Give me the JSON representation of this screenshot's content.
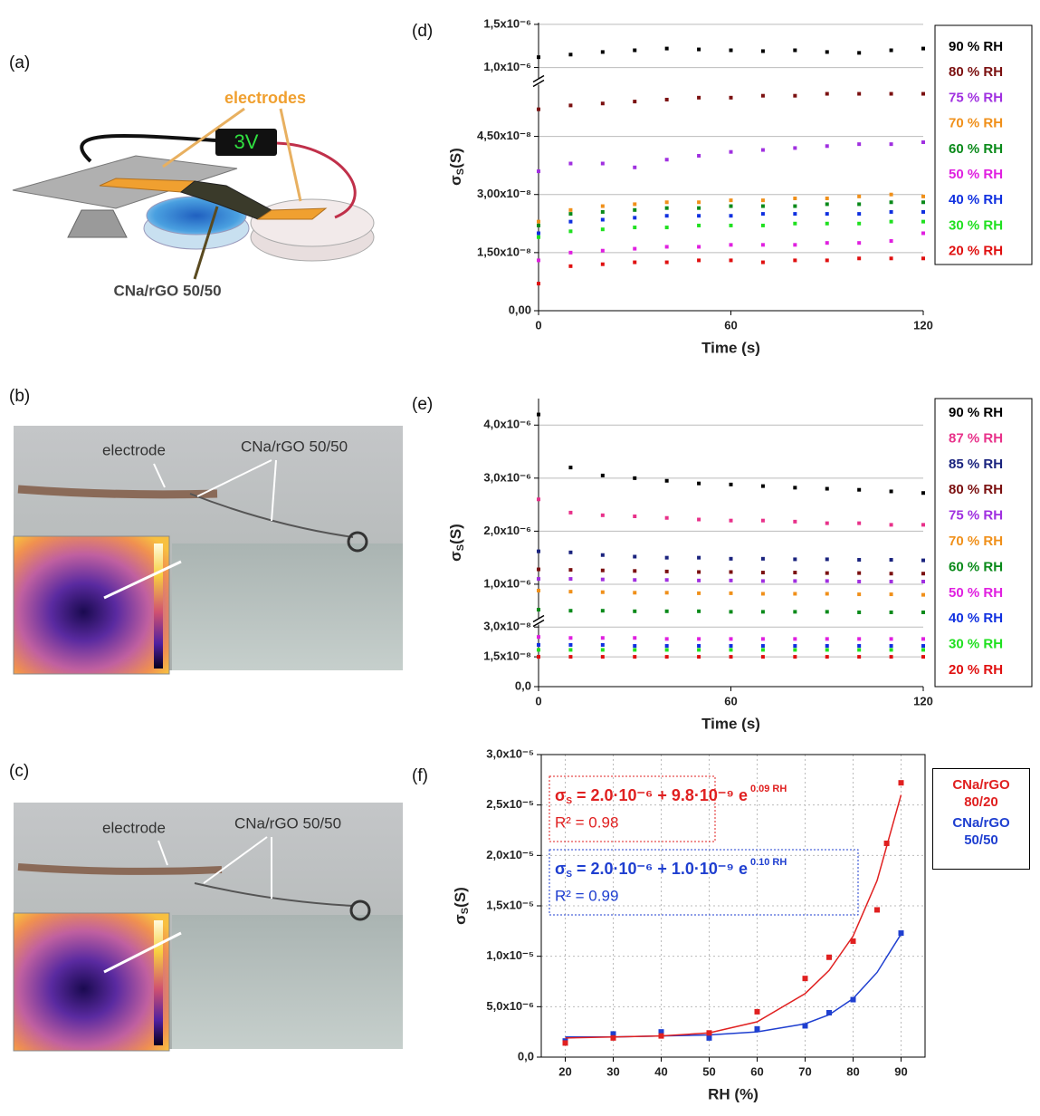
{
  "panels": [
    {
      "label": "(a)",
      "electrodes": "electrodes",
      "voltage": "3V",
      "sample": "CNa/rGO 50/50"
    },
    {
      "label": "(b)",
      "electrode": "electrode",
      "sample": "CNa/rGO 50/50"
    },
    {
      "label": "(c)",
      "electrode": "electrode",
      "sample": "CNa/rGO 50/50"
    }
  ],
  "chart_data": [
    {
      "type": "scatter",
      "panel_label": "(d)",
      "xlabel": "Time (s)",
      "ylabel": [
        "σ",
        "S",
        "(S)"
      ],
      "x": [
        0,
        10,
        20,
        30,
        40,
        50,
        60,
        70,
        80,
        90,
        100,
        110,
        120
      ],
      "xlim": [
        0,
        120
      ],
      "xticks": [
        0,
        60,
        120
      ],
      "grid": true,
      "y_segments": [
        {
          "ylim": [
            0,
            5.8e-08
          ],
          "yticks": [
            {
              "value": 0,
              "label": "0,00"
            },
            {
              "value": 1.5e-08,
              "label": "1,50x10⁻⁸"
            },
            {
              "value": 3e-08,
              "label": "3,00x10⁻⁸"
            },
            {
              "value": 4.5e-08,
              "label": "4,50x10⁻⁸"
            }
          ]
        },
        {
          "ylim": [
            8.8e-07,
            1.52e-06
          ],
          "yticks": [
            {
              "value": 1e-06,
              "label": "1,0x10⁻⁶"
            },
            {
              "value": 1.5e-06,
              "label": "1,5x10⁻⁶"
            }
          ]
        }
      ],
      "series": [
        {
          "name": "90 % RH",
          "color": "#000000",
          "segment": 1,
          "values": [
            1.12e-06,
            1.15e-06,
            1.18e-06,
            1.2e-06,
            1.22e-06,
            1.21e-06,
            1.2e-06,
            1.19e-06,
            1.2e-06,
            1.18e-06,
            1.17e-06,
            1.2e-06,
            1.22e-06
          ]
        },
        {
          "name": "80 % RH",
          "color": "#7b1010",
          "values": [
            5.2e-08,
            5.3e-08,
            5.35e-08,
            5.4e-08,
            5.45e-08,
            5.5e-08,
            5.5e-08,
            5.55e-08,
            5.55e-08,
            5.6e-08,
            5.6e-08,
            5.6e-08,
            5.6e-08
          ]
        },
        {
          "name": "75 % RH",
          "color": "#a030e0",
          "values": [
            3.6e-08,
            3.8e-08,
            3.8e-08,
            3.7e-08,
            3.9e-08,
            4e-08,
            4.1e-08,
            4.15e-08,
            4.2e-08,
            4.25e-08,
            4.3e-08,
            4.3e-08,
            4.35e-08
          ]
        },
        {
          "name": "70 % RH",
          "color": "#f0901a",
          "values": [
            2.3e-08,
            2.6e-08,
            2.7e-08,
            2.75e-08,
            2.8e-08,
            2.8e-08,
            2.85e-08,
            2.85e-08,
            2.9e-08,
            2.9e-08,
            2.95e-08,
            3e-08,
            2.95e-08
          ]
        },
        {
          "name": "60 % RH",
          "color": "#0a8a1a",
          "values": [
            2.2e-08,
            2.5e-08,
            2.55e-08,
            2.6e-08,
            2.65e-08,
            2.65e-08,
            2.7e-08,
            2.7e-08,
            2.7e-08,
            2.75e-08,
            2.75e-08,
            2.8e-08,
            2.8e-08
          ]
        },
        {
          "name": "50 % RH",
          "color": "#e020e0",
          "values": [
            1.3e-08,
            1.5e-08,
            1.55e-08,
            1.6e-08,
            1.65e-08,
            1.65e-08,
            1.7e-08,
            1.7e-08,
            1.7e-08,
            1.75e-08,
            1.75e-08,
            1.8e-08,
            2e-08
          ]
        },
        {
          "name": "40 % RH",
          "color": "#1030e0",
          "values": [
            2e-08,
            2.3e-08,
            2.35e-08,
            2.4e-08,
            2.45e-08,
            2.45e-08,
            2.45e-08,
            2.5e-08,
            2.5e-08,
            2.5e-08,
            2.5e-08,
            2.55e-08,
            2.55e-08
          ]
        },
        {
          "name": "30 % RH",
          "color": "#20e020",
          "values": [
            1.9e-08,
            2.05e-08,
            2.1e-08,
            2.15e-08,
            2.15e-08,
            2.2e-08,
            2.2e-08,
            2.2e-08,
            2.25e-08,
            2.25e-08,
            2.25e-08,
            2.3e-08,
            2.3e-08
          ]
        },
        {
          "name": "20 % RH",
          "color": "#e01010",
          "values": [
            7e-09,
            1.15e-08,
            1.2e-08,
            1.25e-08,
            1.25e-08,
            1.3e-08,
            1.3e-08,
            1.25e-08,
            1.3e-08,
            1.3e-08,
            1.35e-08,
            1.35e-08,
            1.35e-08
          ]
        }
      ]
    },
    {
      "type": "scatter",
      "panel_label": "(e)",
      "xlabel": "Time (s)",
      "ylabel": [
        "σ",
        "S",
        "(S)"
      ],
      "x": [
        0,
        10,
        20,
        30,
        40,
        50,
        60,
        70,
        80,
        90,
        100,
        110,
        120
      ],
      "xlim": [
        0,
        120
      ],
      "xticks": [
        0,
        60,
        120
      ],
      "grid": true,
      "y_segments": [
        {
          "ylim": [
            0,
            3.1e-08
          ],
          "yticks": [
            {
              "value": 0,
              "label": "0,0"
            },
            {
              "value": 1.5e-08,
              "label": "1,5x10⁻⁸"
            },
            {
              "value": 3e-08,
              "label": "3,0x10⁻⁸"
            }
          ]
        },
        {
          "ylim": [
            3.5e-07,
            4.5e-06
          ],
          "yticks": [
            {
              "value": 1e-06,
              "label": "1,0x10⁻⁶"
            },
            {
              "value": 2e-06,
              "label": "2,0x10⁻⁶"
            },
            {
              "value": 3e-06,
              "label": "3,0x10⁻⁶"
            },
            {
              "value": 4e-06,
              "label": "4,0x10⁻⁶"
            }
          ]
        }
      ],
      "series": [
        {
          "name": "90 % RH",
          "color": "#000000",
          "segment": 1,
          "values": [
            4.2e-06,
            3.2e-06,
            3.05e-06,
            3e-06,
            2.95e-06,
            2.9e-06,
            2.88e-06,
            2.85e-06,
            2.82e-06,
            2.8e-06,
            2.78e-06,
            2.75e-06,
            2.72e-06
          ]
        },
        {
          "name": "87 % RH",
          "color": "#e8318a",
          "segment": 1,
          "values": [
            2.6e-06,
            2.35e-06,
            2.3e-06,
            2.28e-06,
            2.25e-06,
            2.22e-06,
            2.2e-06,
            2.2e-06,
            2.18e-06,
            2.15e-06,
            2.15e-06,
            2.12e-06,
            2.12e-06
          ]
        },
        {
          "name": "85 % RH",
          "color": "#1a237e",
          "segment": 1,
          "values": [
            1.62e-06,
            1.6e-06,
            1.55e-06,
            1.52e-06,
            1.5e-06,
            1.5e-06,
            1.48e-06,
            1.48e-06,
            1.47e-06,
            1.47e-06,
            1.46e-06,
            1.46e-06,
            1.45e-06
          ]
        },
        {
          "name": "80 % RH",
          "color": "#7b1010",
          "segment": 1,
          "values": [
            1.28e-06,
            1.27e-06,
            1.26e-06,
            1.25e-06,
            1.24e-06,
            1.23e-06,
            1.23e-06,
            1.22e-06,
            1.22e-06,
            1.21e-06,
            1.21e-06,
            1.2e-06,
            1.2e-06
          ]
        },
        {
          "name": "75 % RH",
          "color": "#a030e0",
          "segment": 1,
          "values": [
            1.1e-06,
            1.1e-06,
            1.09e-06,
            1.08e-06,
            1.08e-06,
            1.07e-06,
            1.07e-06,
            1.06e-06,
            1.06e-06,
            1.06e-06,
            1.05e-06,
            1.05e-06,
            1.05e-06
          ]
        },
        {
          "name": "70 % RH",
          "color": "#f0901a",
          "segment": 1,
          "values": [
            8.8e-07,
            8.6e-07,
            8.5e-07,
            8.4e-07,
            8.4e-07,
            8.3e-07,
            8.3e-07,
            8.2e-07,
            8.2e-07,
            8.2e-07,
            8.1e-07,
            8.1e-07,
            8e-07
          ]
        },
        {
          "name": "60 % RH",
          "color": "#0a8a1a",
          "segment": 1,
          "values": [
            5.2e-07,
            5e-07,
            5e-07,
            4.9e-07,
            4.9e-07,
            4.9e-07,
            4.8e-07,
            4.8e-07,
            4.8e-07,
            4.8e-07,
            4.7e-07,
            4.7e-07,
            4.7e-07
          ]
        },
        {
          "name": "50 % RH",
          "color": "#e020e0",
          "values": [
            2.5e-08,
            2.45e-08,
            2.45e-08,
            2.45e-08,
            2.4e-08,
            2.4e-08,
            2.4e-08,
            2.4e-08,
            2.4e-08,
            2.4e-08,
            2.4e-08,
            2.4e-08,
            2.4e-08
          ]
        },
        {
          "name": "40 % RH",
          "color": "#1030e0",
          "values": [
            2.1e-08,
            2.1e-08,
            2.1e-08,
            2.05e-08,
            2.05e-08,
            2.05e-08,
            2.05e-08,
            2.05e-08,
            2.05e-08,
            2.05e-08,
            2.05e-08,
            2.05e-08,
            2.05e-08
          ]
        },
        {
          "name": "30 % RH",
          "color": "#20e020",
          "values": [
            1.85e-08,
            1.85e-08,
            1.85e-08,
            1.85e-08,
            1.85e-08,
            1.85e-08,
            1.85e-08,
            1.85e-08,
            1.85e-08,
            1.85e-08,
            1.85e-08,
            1.85e-08,
            1.85e-08
          ]
        },
        {
          "name": "20 % RH",
          "color": "#e01010",
          "values": [
            1.5e-08,
            1.5e-08,
            1.5e-08,
            1.5e-08,
            1.5e-08,
            1.5e-08,
            1.5e-08,
            1.5e-08,
            1.5e-08,
            1.5e-08,
            1.5e-08,
            1.5e-08,
            1.5e-08
          ]
        }
      ]
    },
    {
      "type": "scatter",
      "panel_label": "(f)",
      "xlabel": "RH (%)",
      "ylabel": [
        "σ",
        "S",
        "(S)"
      ],
      "xlim": [
        15,
        95
      ],
      "xticks": [
        20,
        30,
        40,
        50,
        60,
        70,
        80,
        90
      ],
      "ylim": [
        0,
        3e-05
      ],
      "yticks": [
        {
          "value": 0,
          "label": "0,0"
        },
        {
          "value": 5e-06,
          "label": "5,0x10⁻⁶"
        },
        {
          "value": 1e-05,
          "label": "1,0x10⁻⁵"
        },
        {
          "value": 1.5e-05,
          "label": "1,5x10⁻⁵"
        },
        {
          "value": 2e-05,
          "label": "2,0x10⁻⁵"
        },
        {
          "value": 2.5e-05,
          "label": "2,5x10⁻⁵"
        },
        {
          "value": 3e-05,
          "label": "3,0x10⁻⁵"
        }
      ],
      "grid": true,
      "series": [
        {
          "name": "CNa/rGO 50/50",
          "color": "#1f3fd0",
          "x": [
            20,
            30,
            40,
            50,
            60,
            70,
            75,
            80,
            90
          ],
          "values": [
            1.6e-06,
            2.3e-06,
            2.5e-06,
            1.9e-06,
            2.8e-06,
            3.1e-06,
            4.4e-06,
            5.7e-06,
            1.23e-05
          ],
          "fit_x": [
            20,
            30,
            40,
            50,
            60,
            70,
            75,
            80,
            85,
            90
          ],
          "fit_values": [
            2e-06,
            2e-06,
            2.1e-06,
            2.2e-06,
            2.5e-06,
            3.3e-06,
            4.2e-06,
            5.8e-06,
            8.4e-06,
            1.22e-05
          ]
        },
        {
          "name": "CNa/rGO 80/20",
          "color": "#e02020",
          "x": [
            20,
            30,
            40,
            50,
            60,
            70,
            75,
            80,
            85,
            87,
            90
          ],
          "values": [
            1.4e-06,
            1.9e-06,
            2.1e-06,
            2.4e-06,
            4.5e-06,
            7.8e-06,
            9.9e-06,
            1.15e-05,
            1.46e-05,
            2.12e-05,
            2.72e-05
          ],
          "fit_x": [
            20,
            30,
            40,
            50,
            60,
            70,
            75,
            80,
            85,
            90
          ],
          "fit_values": [
            1.9e-06,
            2e-06,
            2.1e-06,
            2.4e-06,
            3.5e-06,
            6.3e-06,
            8.6e-06,
            1.2e-05,
            1.75e-05,
            2.6e-05
          ]
        }
      ],
      "annotations": [
        {
          "symbol": "σ",
          "subscript": "S",
          "equation": " = 2.0·10⁻⁶ + 9.8·10⁻⁹ e",
          "exponent": "0.09 RH",
          "r2": "R² = 0.98",
          "color": "#e02020"
        },
        {
          "symbol": "σ",
          "subscript": "S",
          "equation": " = 2.0·10⁻⁶ + 1.0·10⁻⁹ e",
          "exponent": "0.10 RH",
          "r2": "R² = 0.99",
          "color": "#1f3fd0"
        }
      ]
    }
  ]
}
